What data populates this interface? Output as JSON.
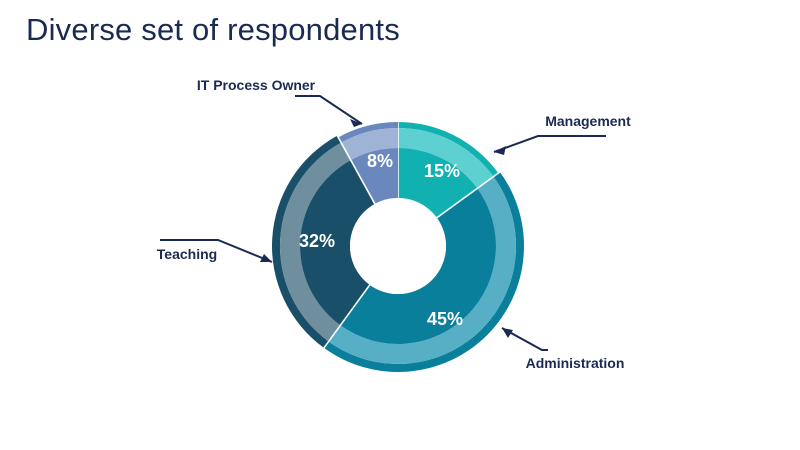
{
  "slide": {
    "title": "Diverse set of respondents"
  },
  "chart_data": {
    "type": "pie",
    "title": "Diverse set of respondents",
    "slices": [
      {
        "name": "Management",
        "value": 15,
        "label": "15%",
        "inner_color": "#12b1b1",
        "outer_color": "#5ed0d2"
      },
      {
        "name": "Administration",
        "value": 45,
        "label": "45%",
        "inner_color": "#0a7f9c",
        "outer_color": "#57afc6"
      },
      {
        "name": "Teaching",
        "value": 32,
        "label": "32%",
        "inner_color": "#1a4f6a",
        "outer_color": "#6f8f9e"
      },
      {
        "name": "IT Process Owner",
        "value": 8,
        "label": "8%",
        "inner_color": "#6a88bd",
        "outer_color": "#9fb3d6"
      }
    ],
    "rim_colors": [
      "#12b1b1",
      "#0a7f9c",
      "#1a4f6a",
      "#6a88bd"
    ],
    "label_color": "#ffffff",
    "callout_color": "#1a2a52"
  }
}
